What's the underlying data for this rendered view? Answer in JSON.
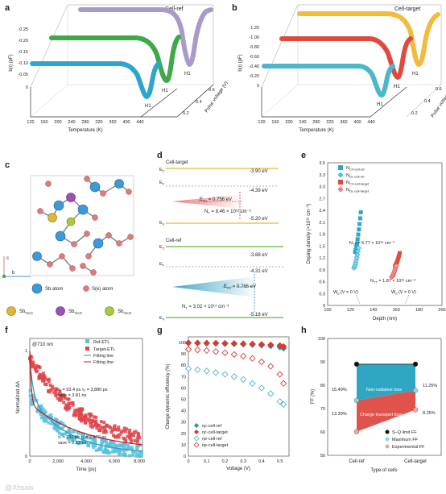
{
  "panels": {
    "a": "a",
    "b": "b",
    "c": "c",
    "d": "d",
    "e": "e",
    "f": "f",
    "g": "g",
    "h": "h"
  },
  "a": {
    "title": "Cell-ref",
    "ylabel": "b(ι) (pF)",
    "xlabel": "Temperature (K)",
    "zlabel": "Pulse voltage (V)",
    "yticks": [
      "0",
      "-0.05",
      "-0.10",
      "-0.15",
      "-0.20",
      "-0.25"
    ],
    "xticks": [
      "120",
      "160",
      "200",
      "240",
      "280",
      "320",
      "360",
      "400",
      "440"
    ],
    "zticks": [
      "0.2",
      "0.4",
      "0.6"
    ],
    "peaks": [
      "H1",
      "H1",
      "H1"
    ],
    "colors": [
      "#a99bc9",
      "#3fa94a",
      "#2ea6cc"
    ]
  },
  "b": {
    "title": "Cell-target",
    "ylabel": "b(ι) (pF)",
    "xlabel": "Temperature (K)",
    "zlabel": "Pulse voltage (V)",
    "yticks": [
      "0",
      "-0.20",
      "-0.40",
      "-0.60",
      "-0.80",
      "-1.00",
      "-1.20"
    ],
    "xticks": [
      "120",
      "160",
      "200",
      "240",
      "280",
      "320",
      "360",
      "400",
      "440"
    ],
    "zticks": [
      "0.2",
      "0.4",
      "0.6"
    ],
    "peaks": [
      "H1",
      "H1",
      "H1"
    ],
    "colors": [
      "#f2bb3c",
      "#de4b3e",
      "#4bb7cc"
    ]
  },
  "c": {
    "legend": [
      "Sb atom",
      "S(e) atom",
      "Sb",
      "Sb",
      "Sb"
    ],
    "legend_subs": [
      "S(e)1",
      "S(e)2",
      "S(e)3"
    ],
    "axes": [
      "b",
      "c"
    ],
    "colors": {
      "sb": "#3d9ad6",
      "se": "#e07b7b",
      "sb1": "#e0b53b",
      "sb2": "#9b4fb8",
      "sb3": "#a9c93b"
    }
  },
  "d": {
    "top": {
      "title": "Cell-target",
      "ec": "E",
      "ec_sub": "C",
      "ef": "E",
      "ef_sub": "F",
      "ev": "E",
      "ev_sub": "V",
      "e1": "-3.90 eV",
      "e2": "-4.39 eV",
      "e3": "-5.20 eV",
      "eh": "E",
      "eh_sub": "H1",
      "eh_val": " = 0.756 eV",
      "nt": "N",
      "nt_sub": "T",
      "nt_val": " = 8.46 × 10¹³ cm⁻³"
    },
    "bottom": {
      "title": "Cell-ref",
      "ec": "E",
      "ec_sub": "C",
      "ef": "E",
      "ef_sub": "F",
      "ev": "E",
      "ev_sub": "V",
      "e1": "-3.88 eV",
      "e2": "-4.31 eV",
      "e3": "-5.18 eV",
      "eh": "E",
      "eh_sub": "H1",
      "eh_val": " = 0.766 eV",
      "nt": "N",
      "nt_sub": "T",
      "nt_val": " = 3.02 × 10¹⁴ cm⁻³"
    }
  },
  "e": {
    "ylabel": "Doping density (×10¹⁵ cm⁻³)",
    "xlabel": "Depth (nm)",
    "yticks": [
      "0",
      "0.3",
      "0.6",
      "0.9",
      "1.2",
      "1.5",
      "1.8",
      "2.1",
      "2.4",
      "2.7",
      "3.0",
      "3.3",
      "3.6"
    ],
    "xticks": [
      "100",
      "120",
      "140",
      "160",
      "180",
      "200"
    ],
    "legend": [
      "N",
      "N",
      "N",
      "N"
    ],
    "legend_rest": [
      "CV-cell-ref",
      "DL-cell-ref",
      "CV-cell-target",
      "DL-cell-target"
    ],
    "ann1": "N",
    "ann1_sub": "TT",
    "ann1_val": " = 5.77 × 10¹⁶ cm⁻³",
    "ann2": "N",
    "ann2_sub": "TT",
    "ann2_val": " = 1.87 × 10¹⁶ cm⁻³",
    "wd1": "W",
    "wd1_sub": "d",
    "wd1_val": " (V = 0 V)",
    "wd2": "W",
    "wd2_sub": "d",
    "wd2_val": " (V = 0 V)"
  },
  "f": {
    "title": "@710 nm",
    "ylabel": "Normalized ΔA",
    "xlabel": "Time (ps)",
    "yticks": [
      "0",
      "1"
    ],
    "xticks": [
      "0",
      "2,000",
      "4,000",
      "6,000",
      "8,000"
    ],
    "legend": [
      "Ref-ETL",
      "Target-ETL",
      "Fitting line",
      "Fitting line"
    ],
    "ann_t1": "τ₁ = 93.4 ps τ₂ = 3,880 ps",
    "ann_t1b": "τave = 3.81 ns",
    "ann_r1": "τ₁ = 233 ps τ₂ = 2,670 ps",
    "ann_r1b": "τave = 2.53 ns",
    "colors": [
      "#5bc2dd",
      "#e0454a"
    ]
  },
  "g": {
    "ylabel": "Charge dynamic efficiency (%)",
    "xlabel": "Voltage (V)",
    "yticks": [
      "0",
      "10",
      "20",
      "30",
      "40",
      "50",
      "60",
      "70",
      "80",
      "90",
      "100"
    ],
    "xticks": [
      "0",
      "0.1",
      "0.2",
      "0.3",
      "0.4",
      "0.5"
    ],
    "legend": [
      "ηc-cell-ref",
      "ηc-cell-target",
      "ηe-cell-ref",
      "ηe-cell-target"
    ]
  },
  "h": {
    "ylabel": "FF (%)",
    "xlabel": "Type of cells",
    "yticks": [
      "50",
      "60",
      "70",
      "80",
      "90",
      "100"
    ],
    "xticks": [
      "Cell-ref",
      "Cell-target"
    ],
    "band1": "Non-radiative loss",
    "band2": "Charge transport loss",
    "l1": "15.49%",
    "l2": "13.39%",
    "r1": "11.25%",
    "r2": "8.25%",
    "legend": [
      "S–Q limit FF",
      "Maximum FF",
      "Experimental FF"
    ]
  },
  "watermark": "@Xhsxis"
}
